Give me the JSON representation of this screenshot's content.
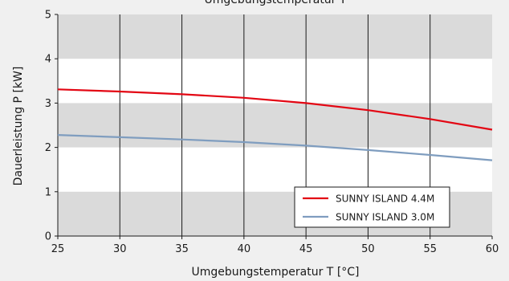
{
  "chart_data": {
    "type": "line",
    "title": "Umgebungstemperatur T",
    "xlabel": "Umgebungstemperatur T [°C]",
    "ylabel": "Dauerleistung P [kW]",
    "xlim": [
      25,
      60
    ],
    "ylim": [
      0,
      5
    ],
    "xticks": [
      25,
      30,
      35,
      40,
      45,
      50,
      55,
      60
    ],
    "yticks": [
      0,
      1,
      2,
      3,
      4,
      5
    ],
    "grid": "vertical lines; alternating grey/white horizontal bands",
    "legend_position": "lower-right",
    "series": [
      {
        "name": "SUNNY ISLAND 4.4M",
        "color": "#e30613",
        "x": [
          25,
          30,
          35,
          40,
          45,
          50,
          55,
          60
        ],
        "y": [
          3.31,
          3.26,
          3.2,
          3.12,
          3.0,
          2.84,
          2.64,
          2.4
        ]
      },
      {
        "name": "SUNNY ISLAND 3.0M",
        "color": "#7f9dbf",
        "x": [
          25,
          30,
          35,
          40,
          45,
          50,
          55,
          60
        ],
        "y": [
          2.28,
          2.23,
          2.18,
          2.12,
          2.04,
          1.94,
          1.83,
          1.71
        ]
      }
    ]
  }
}
